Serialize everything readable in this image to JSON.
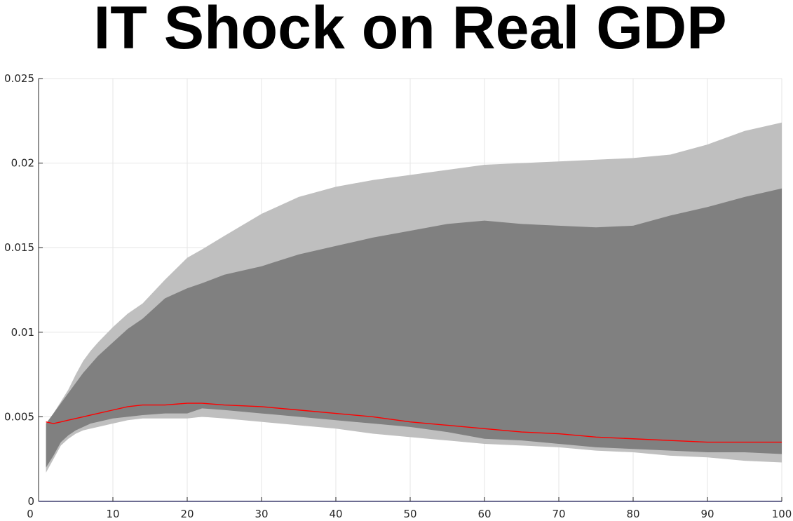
{
  "chart_data": {
    "type": "area",
    "title": "IT Shock on Real GDP",
    "xlabel": "",
    "ylabel": "",
    "xlim": [
      0,
      100
    ],
    "ylim": [
      0,
      0.025
    ],
    "x_ticks": [
      0,
      10,
      20,
      30,
      40,
      50,
      60,
      70,
      80,
      90,
      100
    ],
    "y_ticks": [
      0,
      0.005,
      0.01,
      0.015,
      0.02,
      0.025
    ],
    "y_tick_labels": [
      "0",
      "0.005",
      "0.01",
      "0.015",
      "0.02",
      "0.025"
    ],
    "grid": true,
    "colors": {
      "outer_band": "#bfbfbf",
      "inner_band": "#808080",
      "median": "#ff0000",
      "zero_line": "#6a6aff",
      "grid": "#e6e6e6",
      "axis": "#262626"
    },
    "x": [
      1,
      2,
      3,
      4,
      5,
      6,
      7,
      8,
      10,
      12,
      14,
      17,
      20,
      22,
      25,
      30,
      35,
      40,
      45,
      50,
      55,
      60,
      65,
      70,
      75,
      80,
      85,
      90,
      95,
      100
    ],
    "outer_upper": [
      0.0042,
      0.0052,
      0.0059,
      0.0066,
      0.0075,
      0.0083,
      0.0089,
      0.0094,
      0.0103,
      0.0111,
      0.0117,
      0.0131,
      0.0144,
      0.0149,
      0.0157,
      0.017,
      0.018,
      0.0186,
      0.019,
      0.0193,
      0.0196,
      0.0199,
      0.02,
      0.0201,
      0.0202,
      0.0203,
      0.0205,
      0.0211,
      0.0219,
      0.0224
    ],
    "inner_upper": [
      0.0046,
      0.0052,
      0.0058,
      0.0064,
      0.007,
      0.0076,
      0.0081,
      0.0086,
      0.0094,
      0.0102,
      0.0108,
      0.012,
      0.0126,
      0.0129,
      0.0134,
      0.0139,
      0.0146,
      0.0151,
      0.0156,
      0.016,
      0.0164,
      0.0166,
      0.0164,
      0.0163,
      0.0162,
      0.0163,
      0.0169,
      0.0174,
      0.018,
      0.0185
    ],
    "inner_lower": [
      0.002,
      0.0027,
      0.0035,
      0.0039,
      0.0042,
      0.0044,
      0.0046,
      0.0047,
      0.0049,
      0.005,
      0.0051,
      0.0052,
      0.0052,
      0.0055,
      0.0054,
      0.0052,
      0.005,
      0.0048,
      0.0046,
      0.0044,
      0.0041,
      0.0037,
      0.0036,
      0.0034,
      0.0032,
      0.0031,
      0.003,
      0.0029,
      0.0029,
      0.0028
    ],
    "outer_lower": [
      0.0017,
      0.0025,
      0.0033,
      0.0037,
      0.004,
      0.0042,
      0.0043,
      0.0044,
      0.0046,
      0.0048,
      0.0049,
      0.0049,
      0.0049,
      0.005,
      0.0049,
      0.0047,
      0.0045,
      0.0043,
      0.004,
      0.0038,
      0.0036,
      0.0034,
      0.0033,
      0.0032,
      0.003,
      0.0029,
      0.0027,
      0.0026,
      0.0024,
      0.0023
    ],
    "median": [
      0.0047,
      0.0046,
      0.0047,
      0.0048,
      0.0049,
      0.005,
      0.0051,
      0.0052,
      0.0054,
      0.0056,
      0.0057,
      0.0057,
      0.0058,
      0.0058,
      0.0057,
      0.0056,
      0.0054,
      0.0052,
      0.005,
      0.0047,
      0.0045,
      0.0043,
      0.0041,
      0.004,
      0.0038,
      0.0037,
      0.0036,
      0.0035,
      0.0035,
      0.0035
    ]
  }
}
